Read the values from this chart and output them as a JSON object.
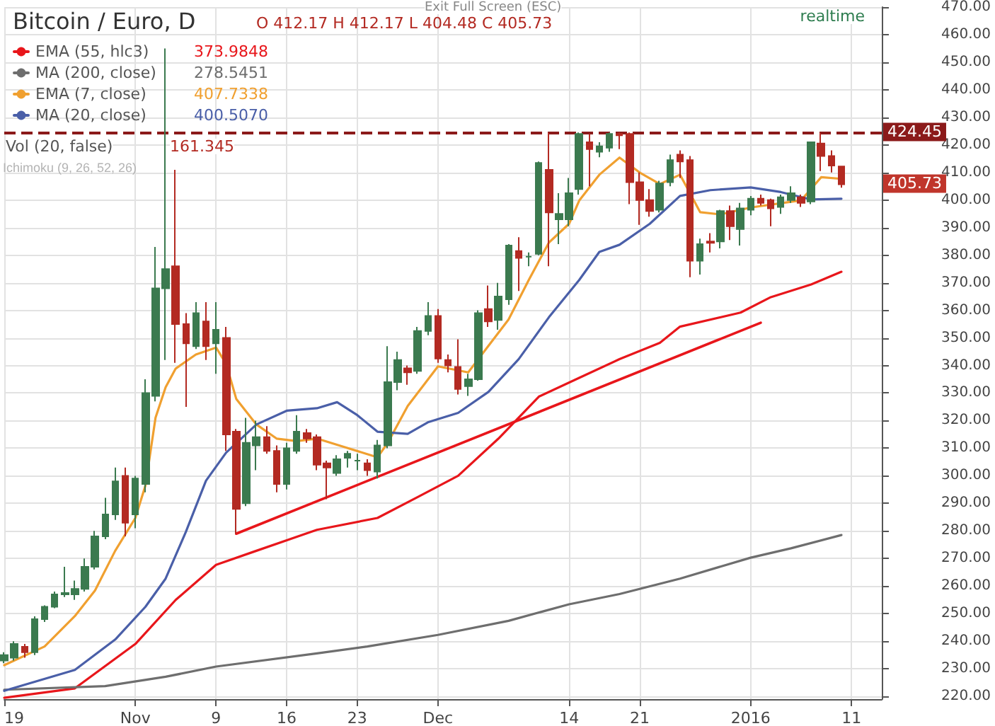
{
  "chart_data": {
    "type": "candlestick",
    "title": "Bitcoin / Euro, D",
    "subtitle": "O 412.17 H 412.17 L 404.48 C 405.73",
    "x": [
      "2015-10-19",
      "2015-10-20",
      "2015-10-21",
      "2015-10-22",
      "2015-10-23",
      "2015-10-24",
      "2015-10-25",
      "2015-10-26",
      "2015-10-27",
      "2015-10-28",
      "2015-10-29",
      "2015-10-30",
      "2015-10-31",
      "2015-11-01",
      "2015-11-02",
      "2015-11-03",
      "2015-11-04",
      "2015-11-05",
      "2015-11-06",
      "2015-11-07",
      "2015-11-08",
      "2015-11-09",
      "2015-11-10",
      "2015-11-11",
      "2015-11-12",
      "2015-11-13",
      "2015-11-14",
      "2015-11-15",
      "2015-11-16",
      "2015-11-17",
      "2015-11-18",
      "2015-11-19",
      "2015-11-20",
      "2015-11-21",
      "2015-11-22",
      "2015-11-23",
      "2015-11-24",
      "2015-11-25",
      "2015-11-26",
      "2015-11-27",
      "2015-11-28",
      "2015-11-29",
      "2015-11-30",
      "2015-12-01",
      "2015-12-02",
      "2015-12-03",
      "2015-12-04",
      "2015-12-05",
      "2015-12-06",
      "2015-12-07",
      "2015-12-08",
      "2015-12-09",
      "2015-12-10",
      "2015-12-11",
      "2015-12-12",
      "2015-12-13",
      "2015-12-14",
      "2015-12-15",
      "2015-12-16",
      "2015-12-17",
      "2015-12-18",
      "2015-12-19",
      "2015-12-20",
      "2015-12-21",
      "2015-12-22",
      "2015-12-23",
      "2015-12-24",
      "2015-12-25",
      "2015-12-26",
      "2015-12-27",
      "2015-12-28",
      "2015-12-29",
      "2015-12-30",
      "2015-12-31",
      "2016-01-01",
      "2016-01-02",
      "2016-01-03",
      "2016-01-04",
      "2016-01-05",
      "2016-01-06",
      "2016-01-07",
      "2016-01-08",
      "2016-01-09",
      "2016-01-10"
    ],
    "ohlc": [
      [
        233,
        236,
        232,
        235
      ],
      [
        234,
        240,
        233,
        239
      ],
      [
        238,
        239,
        234,
        236
      ],
      [
        236,
        249,
        235,
        248
      ],
      [
        248,
        253,
        247,
        252.5
      ],
      [
        252.5,
        258,
        252,
        257
      ],
      [
        257,
        267,
        256,
        257.5
      ],
      [
        257,
        262,
        255,
        259
      ],
      [
        259,
        270,
        258,
        267
      ],
      [
        267,
        280,
        266,
        278
      ],
      [
        278,
        292,
        277,
        286
      ],
      [
        286,
        303,
        284,
        298
      ],
      [
        300,
        303,
        278,
        283
      ],
      [
        286,
        300,
        281,
        299
      ],
      [
        297,
        335,
        294,
        330
      ],
      [
        329,
        383,
        327,
        368
      ],
      [
        368,
        455,
        342,
        375
      ],
      [
        376,
        411,
        341,
        355
      ],
      [
        355,
        359,
        325,
        348
      ],
      [
        347,
        363,
        346,
        359
      ],
      [
        356,
        363,
        342,
        347
      ],
      [
        348,
        363,
        337,
        353
      ],
      [
        350,
        354,
        309,
        315
      ],
      [
        316,
        317,
        279,
        288
      ],
      [
        290,
        321,
        289,
        312
      ],
      [
        311,
        320,
        302,
        314
      ],
      [
        314,
        318,
        308,
        309
      ],
      [
        309,
        311,
        294,
        297
      ],
      [
        297,
        312,
        295,
        310
      ],
      [
        309,
        322,
        308,
        316
      ],
      [
        315.5,
        317,
        312,
        313.5
      ],
      [
        314,
        315,
        302,
        304
      ],
      [
        304.5,
        305.5,
        291.5,
        303
      ],
      [
        301,
        307.5,
        300,
        306
      ],
      [
        306.5,
        309,
        303,
        308
      ],
      [
        305.5,
        308,
        302,
        305.5
      ],
      [
        304.5,
        306,
        300,
        302
      ],
      [
        301.5,
        313,
        299,
        311
      ],
      [
        311,
        347,
        310,
        334
      ],
      [
        334,
        345,
        331,
        342
      ],
      [
        339,
        340,
        333,
        337.5
      ],
      [
        338,
        354,
        337,
        352.5
      ],
      [
        352.5,
        363,
        351,
        358
      ],
      [
        358,
        360.5,
        341,
        342.5
      ],
      [
        342,
        344,
        337.5,
        340
      ],
      [
        339.5,
        349.5,
        329.5,
        331.5
      ],
      [
        332.5,
        337,
        329,
        335
      ],
      [
        335,
        360,
        334.5,
        359
      ],
      [
        360.5,
        369,
        354,
        356
      ],
      [
        356.5,
        370,
        353,
        365
      ],
      [
        364,
        384,
        362,
        383.5
      ],
      [
        381.5,
        386.5,
        367,
        379
      ],
      [
        379.5,
        381,
        376,
        379.5
      ],
      [
        380.5,
        414,
        380,
        413.5
      ],
      [
        411,
        424.5,
        376,
        395.5
      ],
      [
        393,
        402.5,
        384,
        395
      ],
      [
        393,
        408,
        390.5,
        402.5
      ],
      [
        404,
        424.5,
        402,
        424
      ],
      [
        421,
        424,
        405,
        418.5
      ],
      [
        417.5,
        421,
        415.5,
        419.5
      ],
      [
        419,
        424.5,
        417.5,
        424
      ],
      [
        424,
        424.5,
        418.5,
        423.5
      ],
      [
        424,
        424.5,
        398.5,
        406.5
      ],
      [
        406.5,
        410,
        391,
        400
      ],
      [
        400,
        404,
        394,
        396
      ],
      [
        396.5,
        407,
        395.5,
        406
      ],
      [
        406.5,
        416.5,
        405,
        414.5
      ],
      [
        416.5,
        418,
        408,
        414
      ],
      [
        414.5,
        416,
        372,
        378
      ],
      [
        378,
        386,
        373,
        384
      ],
      [
        385,
        388,
        381,
        384.5
      ],
      [
        385,
        396.5,
        382.5,
        396
      ],
      [
        396,
        398,
        385.5,
        390.5
      ],
      [
        389.5,
        399,
        383.5,
        397
      ],
      [
        396.5,
        401.5,
        394.5,
        400.5
      ],
      [
        400.5,
        402,
        398,
        399
      ],
      [
        400,
        400.5,
        390.5,
        397
      ],
      [
        397.5,
        402,
        395,
        401
      ],
      [
        400,
        405,
        399,
        402.5
      ],
      [
        401,
        402,
        397.5,
        399
      ],
      [
        399.5,
        421,
        398.5,
        421
      ],
      [
        420.5,
        424.5,
        410.5,
        416
      ],
      [
        416,
        418,
        410,
        412.5
      ],
      [
        412.17,
        412.17,
        404.48,
        405.73
      ]
    ],
    "colors": [
      "#3b7a4f",
      "#3b7a4f",
      "#b32a22",
      "#3b7a4f",
      "#3b7a4f",
      "#3b7a4f",
      "#3b7a4f",
      "#3b7a4f",
      "#3b7a4f",
      "#3b7a4f",
      "#3b7a4f",
      "#3b7a4f",
      "#b32a22",
      "#3b7a4f",
      "#3b7a4f",
      "#3b7a4f",
      "#3b7a4f",
      "#b32a22",
      "#b32a22",
      "#3b7a4f",
      "#b32a22",
      "#3b7a4f",
      "#b32a22",
      "#b32a22",
      "#3b7a4f",
      "#3b7a4f",
      "#b32a22",
      "#b32a22",
      "#3b7a4f",
      "#3b7a4f",
      "#b32a22",
      "#b32a22",
      "#b32a22",
      "#3b7a4f",
      "#3b7a4f",
      "#3b7a4f",
      "#b32a22",
      "#3b7a4f",
      "#3b7a4f",
      "#3b7a4f",
      "#b32a22",
      "#3b7a4f",
      "#3b7a4f",
      "#b32a22",
      "#b32a22",
      "#b32a22",
      "#3b7a4f",
      "#3b7a4f",
      "#b32a22",
      "#3b7a4f",
      "#3b7a4f",
      "#b32a22",
      "#3b7a4f",
      "#3b7a4f",
      "#b32a22",
      "#3b7a4f",
      "#3b7a4f",
      "#3b7a4f",
      "#b32a22",
      "#3b7a4f",
      "#3b7a4f",
      "#b32a22",
      "#b32a22",
      "#b32a22",
      "#b32a22",
      "#3b7a4f",
      "#3b7a4f",
      "#b32a22",
      "#b32a22",
      "#3b7a4f",
      "#b32a22",
      "#3b7a4f",
      "#b32a22",
      "#3b7a4f",
      "#3b7a4f",
      "#b32a22",
      "#b32a22",
      "#3b7a4f",
      "#3b7a4f",
      "#b32a22",
      "#3b7a4f",
      "#b32a22",
      "#b32a22",
      "#b32a22"
    ],
    "series": [
      {
        "name": "EMA (55, hlc3)",
        "type": "line",
        "color": "#e8161b",
        "x": [
          "2015-10-19",
          "2015-10-26",
          "2015-11-01",
          "2015-11-05",
          "2015-11-09",
          "2015-11-13",
          "2015-11-19",
          "2015-11-25",
          "2015-11-29",
          "2015-12-03",
          "2015-12-07",
          "2015-12-11",
          "2015-12-15",
          "2015-12-19",
          "2015-12-23",
          "2015-12-25",
          "2015-12-31",
          "2016-01-03",
          "2016-01-07",
          "2016-01-10"
        ],
        "values": [
          219.5,
          222.9,
          239,
          255,
          267.7,
          272.8,
          280.4,
          284.7,
          292.3,
          300,
          313.5,
          328.7,
          335.5,
          342.3,
          348.2,
          354.1,
          359.2,
          364.8,
          369.4,
          374
        ]
      },
      {
        "name": "MA (200, close)",
        "type": "line",
        "color": "#6e6e6e",
        "x": [
          "2015-10-19",
          "2015-10-29",
          "2015-11-04",
          "2015-11-09",
          "2015-11-19",
          "2015-11-24",
          "2015-12-01",
          "2015-12-08",
          "2015-12-14",
          "2015-12-19",
          "2015-12-25",
          "2016-01-01",
          "2016-01-05",
          "2016-01-10"
        ],
        "values": [
          222.4,
          223.7,
          227.1,
          230.8,
          235.6,
          238.1,
          242.3,
          247.4,
          253.4,
          257.1,
          262.7,
          270.3,
          273.7,
          278.5
        ]
      },
      {
        "name": "EMA (7, close)",
        "type": "line",
        "color": "#f0a030",
        "x": [
          "2015-10-19",
          "2015-10-23",
          "2015-10-26",
          "2015-10-28",
          "2015-10-30",
          "2015-11-01",
          "2015-11-02",
          "2015-11-03",
          "2015-11-04",
          "2015-11-05",
          "2015-11-07",
          "2015-11-09",
          "2015-11-10",
          "2015-11-11",
          "2015-11-13",
          "2015-11-15",
          "2015-11-17",
          "2015-11-19",
          "2015-11-22",
          "2015-11-25",
          "2015-11-26",
          "2015-11-28",
          "2015-12-01",
          "2015-12-04",
          "2015-12-05",
          "2015-12-08",
          "2015-12-10",
          "2015-12-12",
          "2015-12-14",
          "2015-12-15",
          "2015-12-17",
          "2015-12-19",
          "2015-12-21",
          "2015-12-23",
          "2015-12-25",
          "2015-12-27",
          "2015-12-29",
          "2016-01-01",
          "2016-01-06",
          "2016-01-08",
          "2016-01-10"
        ],
        "values": [
          231.3,
          238.1,
          249.1,
          258.4,
          272.8,
          284.7,
          296.5,
          321.1,
          332.1,
          338.9,
          344,
          346.5,
          340.6,
          327.9,
          318.6,
          313.5,
          312.6,
          313.5,
          310.1,
          306.7,
          311.8,
          325.3,
          339.7,
          337.5,
          342.3,
          356.7,
          371,
          384.6,
          391.4,
          399.8,
          409.2,
          415.4,
          410,
          405.8,
          409.2,
          395.6,
          394.8,
          397.3,
          399.9,
          408.3,
          407.7
        ]
      },
      {
        "name": "MA (20, close)",
        "type": "line",
        "color": "#4a5fa8",
        "x": [
          "2015-10-19",
          "2015-10-26",
          "2015-10-30",
          "2015-11-02",
          "2015-11-04",
          "2015-11-06",
          "2015-11-08",
          "2015-11-10",
          "2015-11-13",
          "2015-11-16",
          "2015-11-19",
          "2015-11-21",
          "2015-11-23",
          "2015-11-25",
          "2015-11-28",
          "2015-11-30",
          "2015-12-03",
          "2015-12-06",
          "2015-12-09",
          "2015-12-12",
          "2015-12-15",
          "2015-12-17",
          "2015-12-19",
          "2015-12-22",
          "2015-12-25",
          "2015-12-28",
          "2016-01-01",
          "2016-01-04",
          "2016-01-07",
          "2016-01-10"
        ],
        "values": [
          222,
          229.6,
          240.6,
          252.5,
          262.7,
          279.6,
          298.2,
          308.4,
          318.6,
          323.6,
          324.5,
          326.7,
          322,
          316,
          315.2,
          319.4,
          322.8,
          330.4,
          342.3,
          357.5,
          371,
          381.2,
          383.8,
          391.4,
          401.5,
          403.6,
          404.6,
          402.9,
          400.2,
          400.5
        ]
      },
      {
        "type": "line",
        "color": "#e8161b",
        "x": [
          "2015-11-11",
          "2016-01-02"
        ],
        "values": [
          279,
          355.5
        ]
      }
    ],
    "xlim": [
      "2015-10-19",
      "2016-01-14"
    ],
    "xticks": [
      {
        "value": "2015-10-19",
        "label": "19"
      },
      {
        "value": "2015-11-01",
        "label": "Nov"
      },
      {
        "value": "2015-11-09",
        "label": "9"
      },
      {
        "value": "2015-11-16",
        "label": "16"
      },
      {
        "value": "2015-11-23",
        "label": "23"
      },
      {
        "value": "2015-12-01",
        "label": "Dec"
      },
      {
        "value": "2015-12-14",
        "label": "14"
      },
      {
        "value": "2015-12-21",
        "label": "21"
      },
      {
        "value": "2016-01-01",
        "label": "2016"
      },
      {
        "value": "2016-01-11",
        "label": "11"
      }
    ],
    "ylim": [
      219,
      470
    ],
    "yticks": [
      {
        "value": 220,
        "label": "220.00"
      },
      {
        "value": 230,
        "label": "230.00"
      },
      {
        "value": 240,
        "label": "240.00"
      },
      {
        "value": 250,
        "label": "250.00"
      },
      {
        "value": 260,
        "label": "260.00"
      },
      {
        "value": 270,
        "label": "270.00"
      },
      {
        "value": 280,
        "label": "280.00"
      },
      {
        "value": 290,
        "label": "290.00"
      },
      {
        "value": 300,
        "label": "300.00"
      },
      {
        "value": 310,
        "label": "310.00"
      },
      {
        "value": 320,
        "label": "320.00"
      },
      {
        "value": 330,
        "label": "330.00"
      },
      {
        "value": 340,
        "label": "340.00"
      },
      {
        "value": 350,
        "label": "350.00"
      },
      {
        "value": 360,
        "label": "360.00"
      },
      {
        "value": 370,
        "label": "370.00"
      },
      {
        "value": 380,
        "label": "380.00"
      },
      {
        "value": 390,
        "label": "390.00"
      },
      {
        "value": 400,
        "label": "400.00"
      },
      {
        "value": 410,
        "label": "410.00"
      },
      {
        "value": 420,
        "label": "420.00"
      },
      {
        "value": 430,
        "label": "430.00"
      },
      {
        "value": 440,
        "label": "440.00"
      },
      {
        "value": 450,
        "label": "450.00"
      },
      {
        "value": 460,
        "label": "460.00"
      },
      {
        "value": 470,
        "label": "470.00"
      }
    ],
    "ref_lines": [
      {
        "axis": "y",
        "value": 424.45,
        "label": "424.45",
        "color": "#8b1a1a",
        "line_style": "dashed"
      }
    ],
    "annotations": [
      "373.9848",
      "278.5451",
      "407.7338",
      "400.5070",
      "Vol (20, false)",
      "161.345",
      "Ichimoku (9, 26, 52, 26)",
      "realtime",
      "Exit Full Screen (ESC)",
      "405.73"
    ],
    "grid": true,
    "legend": "top left",
    "marker": "none",
    "line_style": "solid"
  }
}
